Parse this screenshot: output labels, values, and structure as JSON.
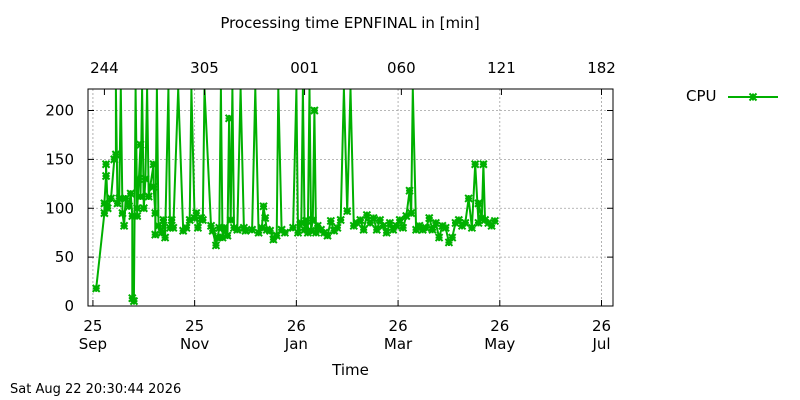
{
  "chart_data": {
    "type": "line",
    "title": "Processing time EPNFINAL in [min]",
    "xlabel": "Time",
    "ylabel": "",
    "ylim": [
      0,
      222
    ],
    "yticks": [
      0,
      50,
      100,
      150,
      200
    ],
    "grid": true,
    "legend_position": "top-right",
    "x_unit": "days since 2025-09-21",
    "xlim": [
      0,
      320
    ],
    "x_ticks_bottom": [
      {
        "x": 3,
        "line1": "25",
        "line2": "Sep"
      },
      {
        "x": 65,
        "line1": "25",
        "line2": "Nov"
      },
      {
        "x": 127,
        "line1": "26",
        "line2": "Jan"
      },
      {
        "x": 189,
        "line1": "26",
        "line2": "Mar"
      },
      {
        "x": 251,
        "line1": "26",
        "line2": "May"
      },
      {
        "x": 313,
        "line1": "26",
        "line2": "Jul"
      }
    ],
    "x_ticks_top": [
      {
        "x": 10,
        "label": "244"
      },
      {
        "x": 71,
        "label": "305"
      },
      {
        "x": 132,
        "label": "001"
      },
      {
        "x": 191,
        "label": "060"
      },
      {
        "x": 252,
        "label": "121"
      },
      {
        "x": 313,
        "label": "182"
      }
    ],
    "series": [
      {
        "name": "CPU",
        "color": "#00b000",
        "points": [
          [
            5,
            18
          ],
          [
            10,
            95
          ],
          [
            10,
            105
          ],
          [
            11,
            133
          ],
          [
            11,
            145
          ],
          [
            12,
            100
          ],
          [
            14,
            110
          ],
          [
            16,
            150
          ],
          [
            17,
            155
          ],
          [
            17,
            222
          ],
          [
            18,
            105
          ],
          [
            19,
            110
          ],
          [
            20,
            222
          ],
          [
            21,
            95
          ],
          [
            22,
            82
          ],
          [
            23,
            110
          ],
          [
            25,
            102
          ],
          [
            26,
            115
          ],
          [
            27,
            92
          ],
          [
            27,
            8
          ],
          [
            28,
            5
          ],
          [
            29,
            222
          ],
          [
            30,
            92
          ],
          [
            30,
            100
          ],
          [
            31,
            130
          ],
          [
            32,
            165
          ],
          [
            32,
            112
          ],
          [
            33,
            222
          ],
          [
            34,
            100
          ],
          [
            35,
            130
          ],
          [
            36,
            222
          ],
          [
            37,
            112
          ],
          [
            40,
            145
          ],
          [
            40,
            122
          ],
          [
            41,
            95
          ],
          [
            41,
            73
          ],
          [
            42,
            222
          ],
          [
            43,
            82
          ],
          [
            45,
            75
          ],
          [
            46,
            88
          ],
          [
            47,
            70
          ],
          [
            49,
            222
          ],
          [
            50,
            80
          ],
          [
            51,
            88
          ],
          [
            52,
            80
          ],
          [
            55,
            222
          ],
          [
            58,
            77
          ],
          [
            60,
            80
          ],
          [
            62,
            88
          ],
          [
            63,
            222
          ],
          [
            65,
            90
          ],
          [
            66,
            95
          ],
          [
            67,
            80
          ],
          [
            69,
            90
          ],
          [
            70,
            88
          ],
          [
            71,
            222
          ],
          [
            75,
            82
          ],
          [
            76,
            77
          ],
          [
            78,
            62
          ],
          [
            79,
            70
          ],
          [
            80,
            80
          ],
          [
            81,
            222
          ],
          [
            82,
            70
          ],
          [
            83,
            80
          ],
          [
            85,
            72
          ],
          [
            86,
            192
          ],
          [
            87,
            88
          ],
          [
            88,
            222
          ],
          [
            89,
            80
          ],
          [
            91,
            78
          ],
          [
            93,
            222
          ],
          [
            95,
            80
          ],
          [
            96,
            77
          ],
          [
            100,
            78
          ],
          [
            102,
            222
          ],
          [
            104,
            75
          ],
          [
            106,
            80
          ],
          [
            107,
            102
          ],
          [
            108,
            90
          ],
          [
            109,
            78
          ],
          [
            111,
            77
          ],
          [
            113,
            68
          ],
          [
            115,
            72
          ],
          [
            116,
            222
          ],
          [
            118,
            78
          ],
          [
            120,
            75
          ],
          [
            125,
            80
          ],
          [
            127,
            222
          ],
          [
            128,
            75
          ],
          [
            130,
            85
          ],
          [
            131,
            222
          ],
          [
            132,
            78
          ],
          [
            133,
            87
          ],
          [
            134,
            75
          ],
          [
            135,
            222
          ],
          [
            136,
            77
          ],
          [
            137,
            88
          ],
          [
            138,
            200
          ],
          [
            139,
            75
          ],
          [
            140,
            82
          ],
          [
            142,
            78
          ],
          [
            144,
            75
          ],
          [
            146,
            72
          ],
          [
            148,
            87
          ],
          [
            150,
            77
          ],
          [
            152,
            80
          ],
          [
            154,
            88
          ],
          [
            156,
            222
          ],
          [
            158,
            97
          ],
          [
            160,
            222
          ],
          [
            162,
            82
          ],
          [
            164,
            85
          ],
          [
            166,
            88
          ],
          [
            168,
            78
          ],
          [
            170,
            93
          ],
          [
            172,
            85
          ],
          [
            174,
            90
          ],
          [
            176,
            78
          ],
          [
            178,
            88
          ],
          [
            180,
            82
          ],
          [
            182,
            75
          ],
          [
            184,
            85
          ],
          [
            186,
            78
          ],
          [
            188,
            82
          ],
          [
            190,
            88
          ],
          [
            192,
            80
          ],
          [
            194,
            92
          ],
          [
            196,
            118
          ],
          [
            197,
            95
          ],
          [
            198,
            222
          ],
          [
            200,
            78
          ],
          [
            202,
            82
          ],
          [
            204,
            78
          ],
          [
            206,
            80
          ],
          [
            208,
            90
          ],
          [
            210,
            78
          ],
          [
            212,
            85
          ],
          [
            214,
            70
          ],
          [
            216,
            82
          ],
          [
            218,
            80
          ],
          [
            220,
            65
          ],
          [
            222,
            70
          ],
          [
            224,
            85
          ],
          [
            226,
            88
          ],
          [
            228,
            82
          ],
          [
            230,
            85
          ],
          [
            232,
            110
          ],
          [
            234,
            80
          ],
          [
            236,
            145
          ],
          [
            238,
            85
          ],
          [
            238,
            105
          ],
          [
            240,
            90
          ],
          [
            241,
            145
          ],
          [
            242,
            88
          ],
          [
            244,
            85
          ],
          [
            246,
            82
          ],
          [
            248,
            87
          ]
        ]
      }
    ]
  },
  "timestamp": "Sat Aug 22 20:30:44 2026",
  "legend": {
    "label": "CPU"
  }
}
